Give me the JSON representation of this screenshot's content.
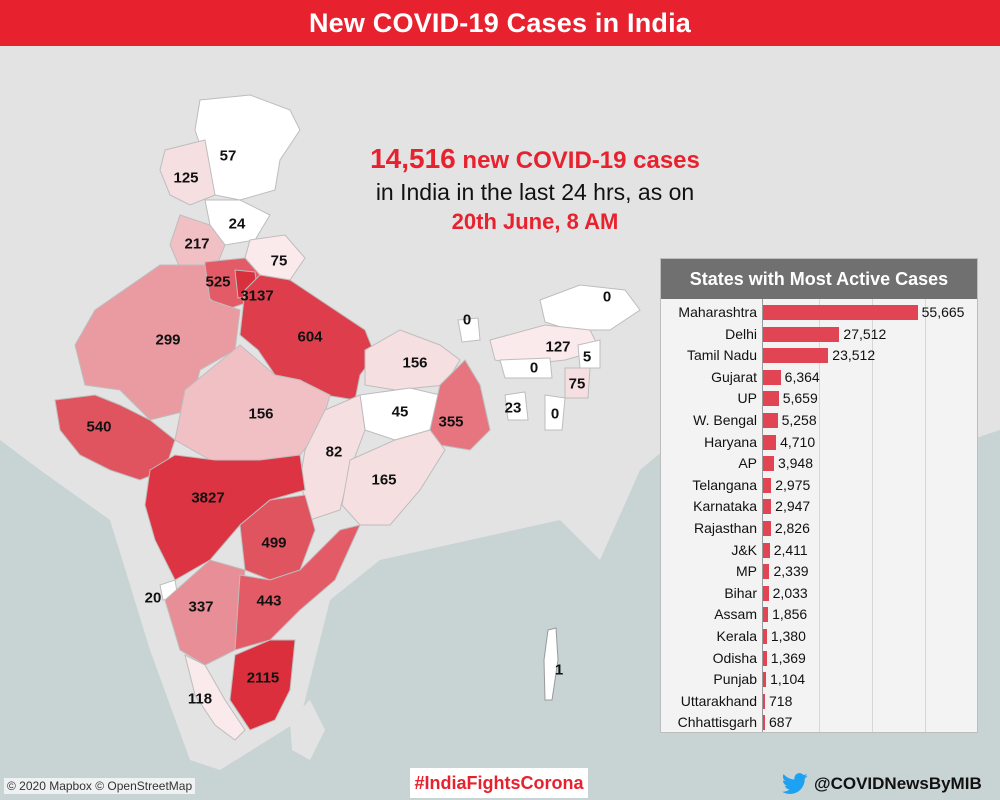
{
  "header": {
    "title": "New COVID-19 Cases in India"
  },
  "headline": {
    "count": "14,516",
    "line1_rest": " new COVID-19 cases",
    "line2": "in India in the last 24 hrs, as on",
    "line3": "20th June, 8 AM"
  },
  "map_labels": [
    {
      "id": "ladakh",
      "value": "57"
    },
    {
      "id": "jk",
      "value": "125"
    },
    {
      "id": "himachal",
      "value": "24"
    },
    {
      "id": "punjab",
      "value": "217"
    },
    {
      "id": "uttarakhand",
      "value": "75"
    },
    {
      "id": "haryana",
      "value": "525"
    },
    {
      "id": "delhi",
      "value": "3137"
    },
    {
      "id": "rajasthan",
      "value": "299"
    },
    {
      "id": "up",
      "value": "604"
    },
    {
      "id": "bihar",
      "value": "156"
    },
    {
      "id": "sikkim",
      "value": "0"
    },
    {
      "id": "arunachal",
      "value": "0"
    },
    {
      "id": "assam",
      "value": "127"
    },
    {
      "id": "nagaland",
      "value": "5"
    },
    {
      "id": "meghalaya",
      "value": "0"
    },
    {
      "id": "manipur",
      "value": "75"
    },
    {
      "id": "tripura",
      "value": "23"
    },
    {
      "id": "mizoram",
      "value": "0"
    },
    {
      "id": "gujarat",
      "value": "540"
    },
    {
      "id": "mp",
      "value": "156"
    },
    {
      "id": "jharkhand",
      "value": "45"
    },
    {
      "id": "westbengal",
      "value": "355"
    },
    {
      "id": "chhattisgarh",
      "value": "82"
    },
    {
      "id": "odisha",
      "value": "165"
    },
    {
      "id": "maharashtra",
      "value": "3827"
    },
    {
      "id": "telangana",
      "value": "499"
    },
    {
      "id": "goa",
      "value": "20"
    },
    {
      "id": "karnataka",
      "value": "337"
    },
    {
      "id": "ap",
      "value": "443"
    },
    {
      "id": "tamilnadu",
      "value": "2115"
    },
    {
      "id": "kerala",
      "value": "118"
    },
    {
      "id": "andaman",
      "value": "1"
    }
  ],
  "panel": {
    "title": "States with Most Active Cases"
  },
  "chart_data": {
    "type": "bar",
    "title": "States with Most Active Cases",
    "categories": [
      "Maharashtra",
      "Delhi",
      "Tamil Nadu",
      "Gujarat",
      "UP",
      "W. Bengal",
      "Haryana",
      "AP",
      "Telangana",
      "Karnataka",
      "Rajasthan",
      "J&K",
      "MP",
      "Bihar",
      "Assam",
      "Kerala",
      "Odisha",
      "Punjab",
      "Uttarakhand",
      "Chhattisgarh"
    ],
    "values": [
      55665,
      27512,
      23512,
      6364,
      5659,
      5258,
      4710,
      3948,
      2975,
      2947,
      2826,
      2411,
      2339,
      2033,
      1856,
      1380,
      1369,
      1104,
      718,
      687
    ],
    "value_labels": [
      "55,665",
      "27,512",
      "23,512",
      "6,364",
      "5,659",
      "5,258",
      "4,710",
      "3,948",
      "2,975",
      "2,947",
      "2,826",
      "2,411",
      "2,339",
      "2,033",
      "1,856",
      "1,380",
      "1,369",
      "1,104",
      "718",
      "687"
    ],
    "xlim": [
      0,
      60000
    ],
    "bar_color": "#e14553"
  },
  "footer": {
    "credit": "© 2020 Mapbox © OpenStreetMap",
    "hashtag": "#IndiaFightsCorona",
    "twitter": "@COVIDNewsByMIB"
  }
}
